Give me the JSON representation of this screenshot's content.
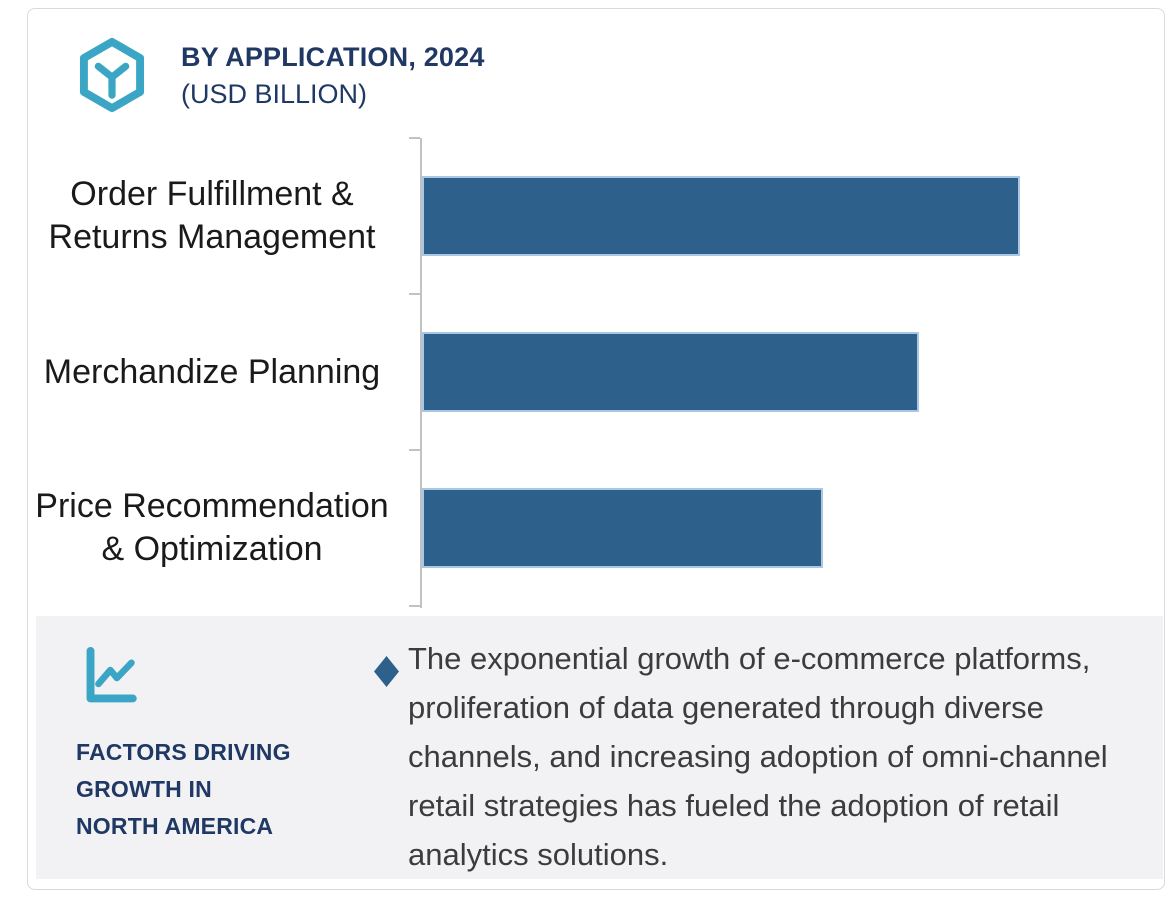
{
  "header": {
    "title": "BY APPLICATION, 2024",
    "subtitle": "(USD BILLION)",
    "logo_icon": "hexagon-y-icon"
  },
  "colors": {
    "teal": "#3BA5C5",
    "navy": "#1F3864",
    "bar_fill": "#2E608C",
    "bar_border": "#A9C7E3",
    "axis": "#C2C2C2",
    "panel_bg": "#F2F2F5",
    "text_dark": "#1A1A1A",
    "paragraph_text": "#3C3C3C"
  },
  "chart_data": {
    "type": "bar",
    "orientation": "horizontal",
    "title": "BY APPLICATION, 2024",
    "subtitle": "(USD BILLION)",
    "categories": [
      "Order Fulfillment & Returns Management",
      "Merchandize Planning",
      "Price Recommendation & Optimization"
    ],
    "label_lines": [
      [
        "Order Fulfillment &",
        "Returns Management"
      ],
      [
        "Merchandize Planning"
      ],
      [
        "Price Recommendation",
        "& Optimization"
      ]
    ],
    "values_relative": [
      1.0,
      0.83,
      0.67
    ],
    "xlim": [
      0,
      1.24
    ],
    "value_axis_labels_shown": false,
    "gridlines": false,
    "legend": false,
    "bar_color": "#2E608C",
    "bar_border_color": "#A9C7E3"
  },
  "factors_panel": {
    "icon": "line-chart-icon",
    "heading": "FACTORS DRIVING GROWTH IN NORTH AMERICA",
    "heading_lines": [
      "FACTORS DRIVING",
      "GROWTH IN",
      "NORTH AMERICA"
    ],
    "bullet_marker": "diamond",
    "bullet_text": "The exponential growth of e-commerce platforms, proliferation of data generated through diverse channels, and increasing adoption of omni-channel retail strategies has fueled the adoption of retail analytics solutions."
  }
}
